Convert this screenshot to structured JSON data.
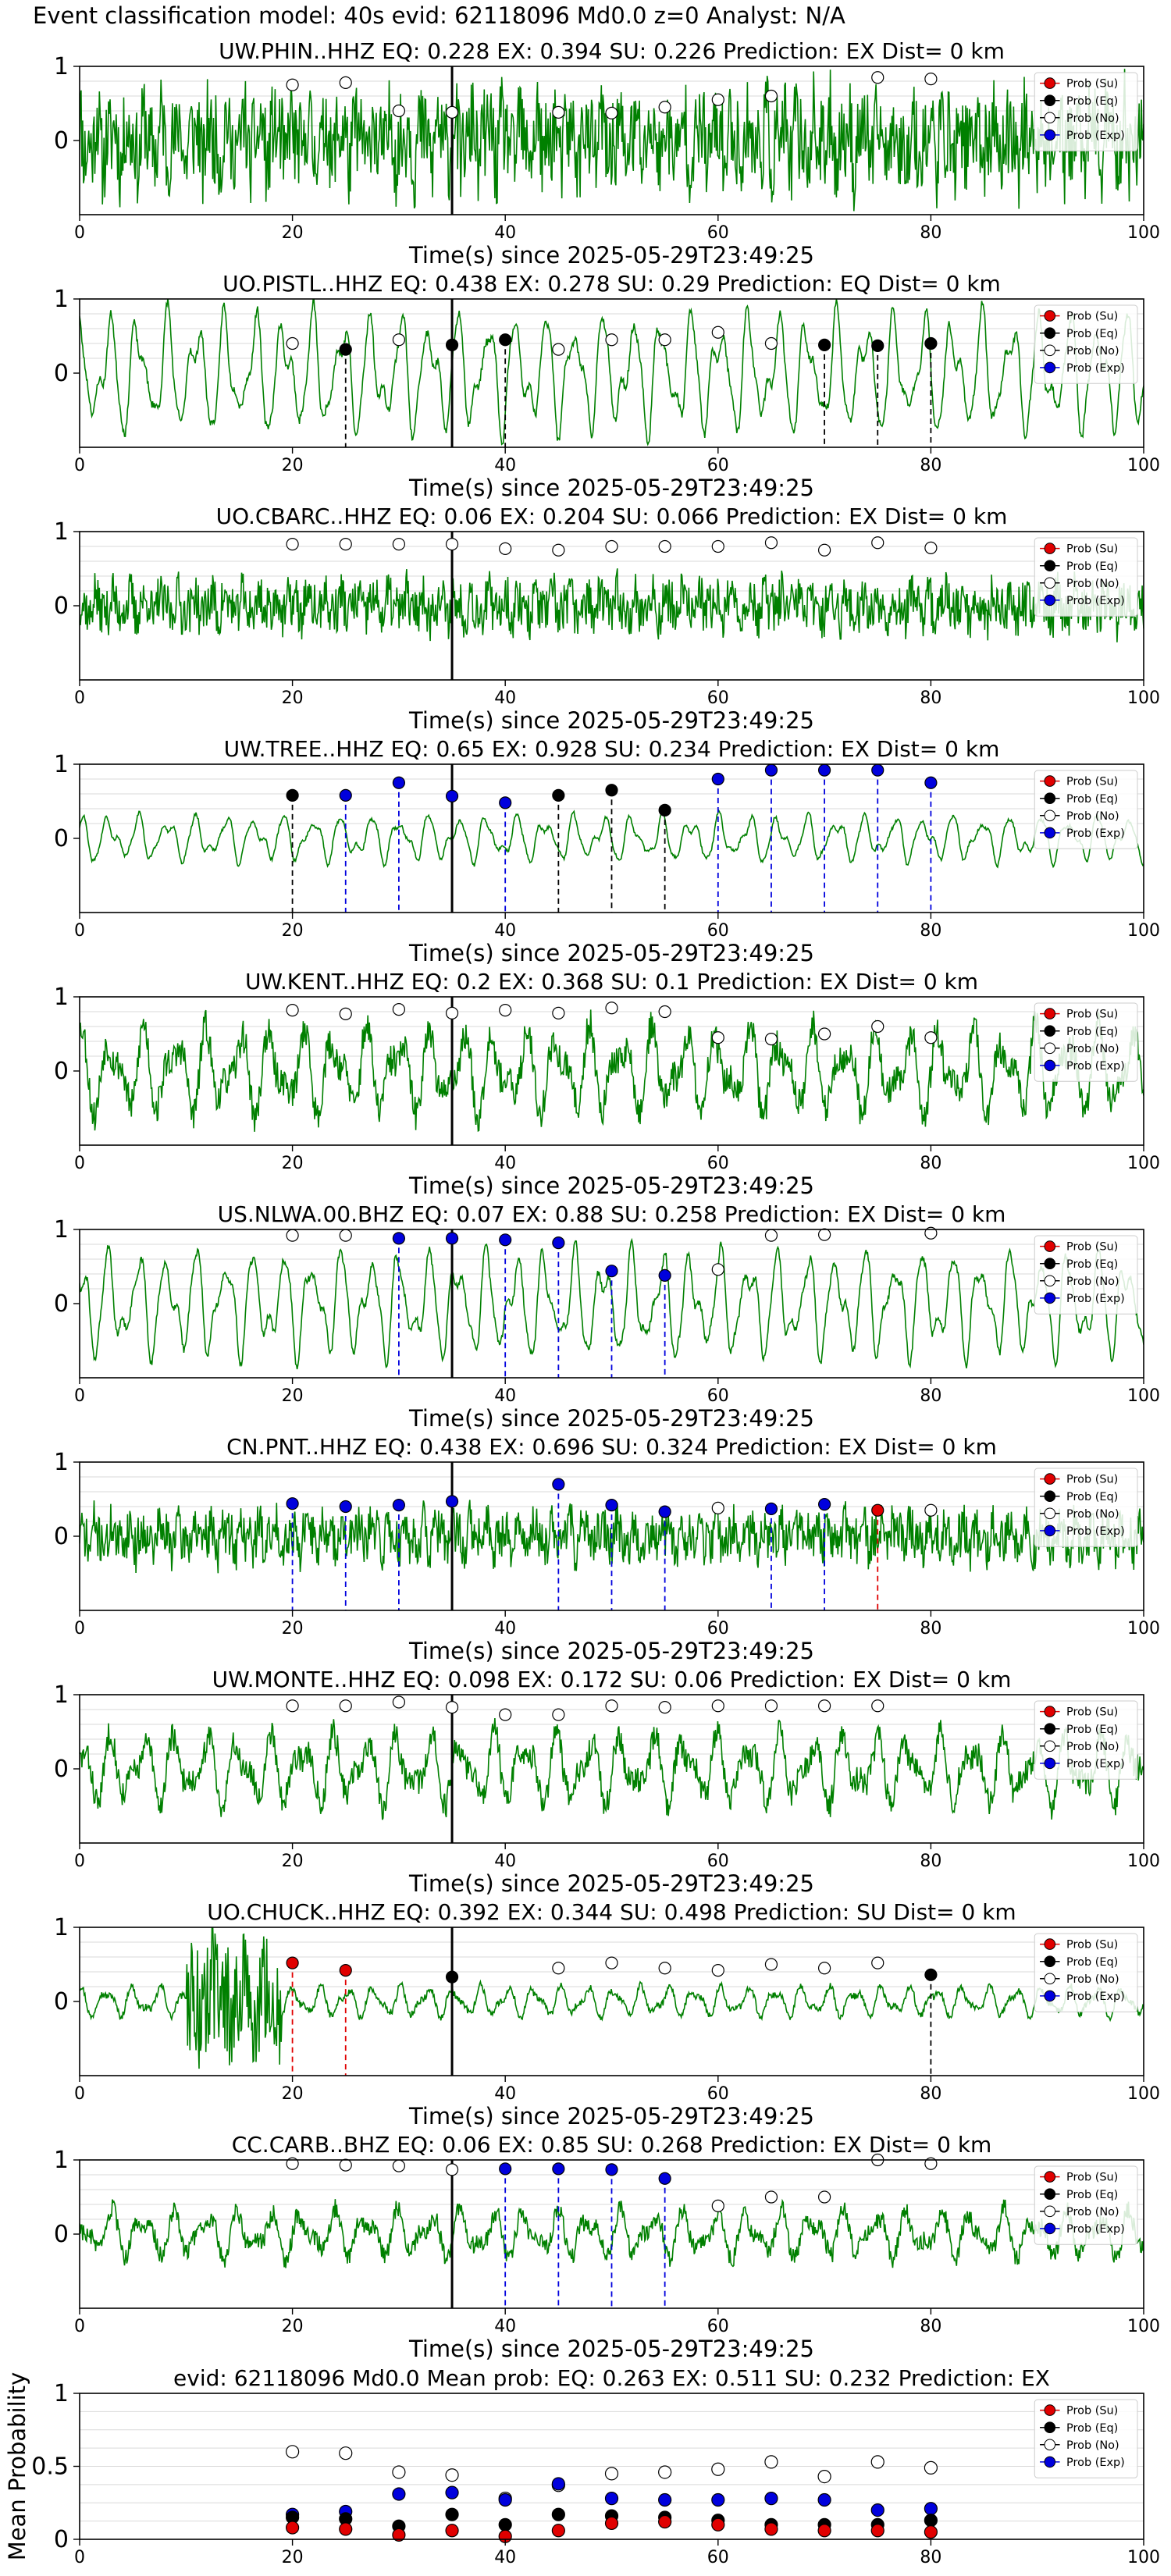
{
  "figure": {
    "suptitle": "Event classification model: 40s evid: 62118096 Md0.0 z=0 Analyst: N/A",
    "legend_labels": [
      "Prob (Su)",
      "Prob (Eq)",
      "Prob (No)",
      "Prob (Exp)"
    ],
    "colors": {
      "su": "#e00000",
      "eq": "#000000",
      "no": "#ffffff",
      "exp": "#0000dd",
      "trace": "#008000",
      "grid": "#d9d9d9"
    }
  },
  "chart_data": [
    {
      "type": "line",
      "title": "UW.PHIN..HHZ   EQ: 0.228  EX: 0.394  SU: 0.226   Prediction: EX    Dist= 0 km",
      "xlabel": "Time(s) since 2025-05-29T23:49:25",
      "ylabel": "",
      "xlim": [
        0,
        100
      ],
      "ylim": [
        -1,
        1
      ],
      "xticks": [
        0,
        20,
        40,
        60,
        80,
        100
      ],
      "yticks": [
        0,
        1
      ],
      "grid": true,
      "legend_position": "upper-right",
      "trace": {
        "style": "noisy",
        "amplitude": 0.85,
        "seed": 11
      },
      "pick_time": 35,
      "points": [
        {
          "x": 20,
          "y": 0.75,
          "cls": "no"
        },
        {
          "x": 25,
          "y": 0.78,
          "cls": "no"
        },
        {
          "x": 30,
          "y": 0.4,
          "cls": "no"
        },
        {
          "x": 35,
          "y": 0.38,
          "cls": "no"
        },
        {
          "x": 45,
          "y": 0.38,
          "cls": "no"
        },
        {
          "x": 50,
          "y": 0.37,
          "cls": "no"
        },
        {
          "x": 55,
          "y": 0.45,
          "cls": "no"
        },
        {
          "x": 60,
          "y": 0.55,
          "cls": "no"
        },
        {
          "x": 65,
          "y": 0.6,
          "cls": "no"
        },
        {
          "x": 75,
          "y": 0.85,
          "cls": "no"
        },
        {
          "x": 80,
          "y": 0.83,
          "cls": "no"
        }
      ]
    },
    {
      "type": "line",
      "title": "UO.PISTL..HHZ   EQ: 0.438  EX: 0.278  SU: 0.29   Prediction: EQ    Dist= 0 km",
      "xlabel": "Time(s) since 2025-05-29T23:49:25",
      "ylabel": "",
      "xlim": [
        0,
        100
      ],
      "ylim": [
        -1,
        1
      ],
      "xticks": [
        0,
        20,
        40,
        60,
        80,
        100
      ],
      "yticks": [
        0,
        1
      ],
      "grid": true,
      "legend_position": "upper-right",
      "trace": {
        "style": "oscillating",
        "amplitude": 0.9,
        "seed": 23
      },
      "pick_time": 35,
      "points": [
        {
          "x": 20,
          "y": 0.4,
          "cls": "no"
        },
        {
          "x": 25,
          "y": 0.32,
          "cls": "eq"
        },
        {
          "x": 30,
          "y": 0.45,
          "cls": "no"
        },
        {
          "x": 35,
          "y": 0.38,
          "cls": "eq"
        },
        {
          "x": 40,
          "y": 0.45,
          "cls": "eq"
        },
        {
          "x": 45,
          "y": 0.32,
          "cls": "no"
        },
        {
          "x": 50,
          "y": 0.45,
          "cls": "no"
        },
        {
          "x": 55,
          "y": 0.45,
          "cls": "no"
        },
        {
          "x": 60,
          "y": 0.55,
          "cls": "no"
        },
        {
          "x": 65,
          "y": 0.4,
          "cls": "no"
        },
        {
          "x": 70,
          "y": 0.38,
          "cls": "eq"
        },
        {
          "x": 75,
          "y": 0.37,
          "cls": "eq"
        },
        {
          "x": 80,
          "y": 0.4,
          "cls": "eq"
        }
      ]
    },
    {
      "type": "line",
      "title": "UO.CBARC..HHZ   EQ: 0.06  EX: 0.204  SU: 0.066   Prediction: EX    Dist= 0 km",
      "xlabel": "Time(s) since 2025-05-29T23:49:25",
      "ylabel": "",
      "xlim": [
        0,
        100
      ],
      "ylim": [
        -1,
        1
      ],
      "xticks": [
        0,
        20,
        40,
        60,
        80,
        100
      ],
      "yticks": [
        0,
        1
      ],
      "grid": true,
      "legend_position": "upper-right",
      "trace": {
        "style": "noisy",
        "amplitude": 0.45,
        "seed": 37
      },
      "pick_time": 35,
      "points": [
        {
          "x": 20,
          "y": 0.83,
          "cls": "no"
        },
        {
          "x": 25,
          "y": 0.83,
          "cls": "no"
        },
        {
          "x": 30,
          "y": 0.83,
          "cls": "no"
        },
        {
          "x": 35,
          "y": 0.83,
          "cls": "no"
        },
        {
          "x": 40,
          "y": 0.77,
          "cls": "no"
        },
        {
          "x": 45,
          "y": 0.75,
          "cls": "no"
        },
        {
          "x": 50,
          "y": 0.8,
          "cls": "no"
        },
        {
          "x": 55,
          "y": 0.8,
          "cls": "no"
        },
        {
          "x": 60,
          "y": 0.8,
          "cls": "no"
        },
        {
          "x": 65,
          "y": 0.85,
          "cls": "no"
        },
        {
          "x": 70,
          "y": 0.75,
          "cls": "no"
        },
        {
          "x": 75,
          "y": 0.85,
          "cls": "no"
        },
        {
          "x": 80,
          "y": 0.78,
          "cls": "no"
        }
      ]
    },
    {
      "type": "line",
      "title": "UW.TREE..HHZ   EQ: 0.65  EX: 0.928  SU: 0.234   Prediction: EX    Dist= 0 km",
      "xlabel": "Time(s) since 2025-05-29T23:49:25",
      "ylabel": "",
      "xlim": [
        0,
        100
      ],
      "ylim": [
        -1,
        1
      ],
      "xticks": [
        0,
        20,
        40,
        60,
        80,
        100
      ],
      "yticks": [
        0,
        1
      ],
      "grid": true,
      "legend_position": "upper-right",
      "trace": {
        "style": "oscillating",
        "amplitude": 0.35,
        "seed": 41
      },
      "pick_time": 35,
      "points": [
        {
          "x": 20,
          "y": 0.58,
          "cls": "eq"
        },
        {
          "x": 25,
          "y": 0.58,
          "cls": "exp"
        },
        {
          "x": 30,
          "y": 0.75,
          "cls": "exp"
        },
        {
          "x": 35,
          "y": 0.57,
          "cls": "exp"
        },
        {
          "x": 40,
          "y": 0.48,
          "cls": "exp"
        },
        {
          "x": 45,
          "y": 0.58,
          "cls": "eq"
        },
        {
          "x": 50,
          "y": 0.65,
          "cls": "eq"
        },
        {
          "x": 55,
          "y": 0.38,
          "cls": "eq"
        },
        {
          "x": 60,
          "y": 0.8,
          "cls": "exp"
        },
        {
          "x": 65,
          "y": 0.92,
          "cls": "exp"
        },
        {
          "x": 70,
          "y": 0.92,
          "cls": "exp"
        },
        {
          "x": 75,
          "y": 0.92,
          "cls": "exp"
        },
        {
          "x": 80,
          "y": 0.75,
          "cls": "exp"
        }
      ]
    },
    {
      "type": "line",
      "title": "UW.KENT..HHZ   EQ: 0.2  EX: 0.368  SU: 0.1   Prediction: EX    Dist= 0 km",
      "xlabel": "Time(s) since 2025-05-29T23:49:25",
      "ylabel": "",
      "xlim": [
        0,
        100
      ],
      "ylim": [
        -1,
        1
      ],
      "xticks": [
        0,
        20,
        40,
        60,
        80,
        100
      ],
      "yticks": [
        0,
        1
      ],
      "grid": true,
      "legend_position": "upper-right",
      "trace": {
        "style": "mixed",
        "amplitude": 0.8,
        "seed": 53
      },
      "pick_time": 35,
      "points": [
        {
          "x": 20,
          "y": 0.82,
          "cls": "no"
        },
        {
          "x": 25,
          "y": 0.77,
          "cls": "no"
        },
        {
          "x": 30,
          "y": 0.83,
          "cls": "no"
        },
        {
          "x": 35,
          "y": 0.78,
          "cls": "no"
        },
        {
          "x": 40,
          "y": 0.82,
          "cls": "no"
        },
        {
          "x": 45,
          "y": 0.78,
          "cls": "no"
        },
        {
          "x": 50,
          "y": 0.85,
          "cls": "no"
        },
        {
          "x": 55,
          "y": 0.8,
          "cls": "no"
        },
        {
          "x": 60,
          "y": 0.45,
          "cls": "no"
        },
        {
          "x": 65,
          "y": 0.43,
          "cls": "no"
        },
        {
          "x": 70,
          "y": 0.5,
          "cls": "no"
        },
        {
          "x": 75,
          "y": 0.6,
          "cls": "no"
        },
        {
          "x": 80,
          "y": 0.45,
          "cls": "no"
        }
      ]
    },
    {
      "type": "line",
      "title": "US.NLWA.00.BHZ   EQ: 0.07  EX: 0.88  SU: 0.258   Prediction: EX    Dist= 0 km",
      "xlabel": "Time(s) since 2025-05-29T23:49:25",
      "ylabel": "",
      "xlim": [
        0,
        100
      ],
      "ylim": [
        -1,
        1
      ],
      "xticks": [
        0,
        20,
        40,
        60,
        80,
        100
      ],
      "yticks": [
        0,
        1
      ],
      "grid": true,
      "legend_position": "upper-right",
      "trace": {
        "style": "oscillating",
        "amplitude": 0.8,
        "seed": 61
      },
      "pick_time": 35,
      "points": [
        {
          "x": 20,
          "y": 0.92,
          "cls": "no"
        },
        {
          "x": 25,
          "y": 0.92,
          "cls": "no"
        },
        {
          "x": 30,
          "y": 0.88,
          "cls": "exp"
        },
        {
          "x": 35,
          "y": 0.88,
          "cls": "exp"
        },
        {
          "x": 40,
          "y": 0.86,
          "cls": "exp"
        },
        {
          "x": 45,
          "y": 0.82,
          "cls": "exp"
        },
        {
          "x": 50,
          "y": 0.44,
          "cls": "exp"
        },
        {
          "x": 55,
          "y": 0.38,
          "cls": "exp"
        },
        {
          "x": 60,
          "y": 0.46,
          "cls": "no"
        },
        {
          "x": 65,
          "y": 0.92,
          "cls": "no"
        },
        {
          "x": 70,
          "y": 0.93,
          "cls": "no"
        },
        {
          "x": 80,
          "y": 0.95,
          "cls": "no"
        }
      ]
    },
    {
      "type": "line",
      "title": "CN.PNT..HHZ   EQ: 0.438  EX: 0.696  SU: 0.324   Prediction: EX    Dist= 0 km",
      "xlabel": "Time(s) since 2025-05-29T23:49:25",
      "ylabel": "",
      "xlim": [
        0,
        100
      ],
      "ylim": [
        -1,
        1
      ],
      "xticks": [
        0,
        20,
        40,
        60,
        80,
        100
      ],
      "yticks": [
        0,
        1
      ],
      "grid": true,
      "legend_position": "upper-right",
      "trace": {
        "style": "noisy",
        "amplitude": 0.45,
        "seed": 71
      },
      "pick_time": 35,
      "points": [
        {
          "x": 20,
          "y": 0.44,
          "cls": "exp"
        },
        {
          "x": 25,
          "y": 0.4,
          "cls": "exp"
        },
        {
          "x": 30,
          "y": 0.42,
          "cls": "exp"
        },
        {
          "x": 35,
          "y": 0.47,
          "cls": "exp"
        },
        {
          "x": 45,
          "y": 0.7,
          "cls": "exp"
        },
        {
          "x": 50,
          "y": 0.42,
          "cls": "exp"
        },
        {
          "x": 55,
          "y": 0.33,
          "cls": "exp"
        },
        {
          "x": 60,
          "y": 0.38,
          "cls": "no"
        },
        {
          "x": 65,
          "y": 0.37,
          "cls": "exp"
        },
        {
          "x": 70,
          "y": 0.43,
          "cls": "exp"
        },
        {
          "x": 75,
          "y": 0.35,
          "cls": "su"
        },
        {
          "x": 80,
          "y": 0.35,
          "cls": "no"
        }
      ]
    },
    {
      "type": "line",
      "title": "UW.MONTE..HHZ   EQ: 0.098  EX: 0.172  SU: 0.06   Prediction: EX    Dist= 0 km",
      "xlabel": "Time(s) since 2025-05-29T23:49:25",
      "ylabel": "",
      "xlim": [
        0,
        100
      ],
      "ylim": [
        -1,
        1
      ],
      "xticks": [
        0,
        20,
        40,
        60,
        80,
        100
      ],
      "yticks": [
        0,
        1
      ],
      "grid": true,
      "legend_position": "upper-right",
      "trace": {
        "style": "mixed",
        "amplitude": 0.65,
        "seed": 83
      },
      "pick_time": 35,
      "points": [
        {
          "x": 20,
          "y": 0.85,
          "cls": "no"
        },
        {
          "x": 25,
          "y": 0.85,
          "cls": "no"
        },
        {
          "x": 30,
          "y": 0.9,
          "cls": "no"
        },
        {
          "x": 35,
          "y": 0.83,
          "cls": "no"
        },
        {
          "x": 40,
          "y": 0.73,
          "cls": "no"
        },
        {
          "x": 45,
          "y": 0.73,
          "cls": "no"
        },
        {
          "x": 50,
          "y": 0.85,
          "cls": "no"
        },
        {
          "x": 55,
          "y": 0.83,
          "cls": "no"
        },
        {
          "x": 60,
          "y": 0.85,
          "cls": "no"
        },
        {
          "x": 65,
          "y": 0.85,
          "cls": "no"
        },
        {
          "x": 70,
          "y": 0.85,
          "cls": "no"
        },
        {
          "x": 75,
          "y": 0.85,
          "cls": "no"
        }
      ]
    },
    {
      "type": "line",
      "title": "UO.CHUCK..HHZ   EQ: 0.392  EX: 0.344  SU: 0.498   Prediction: SU    Dist= 0 km",
      "xlabel": "Time(s) since 2025-05-29T23:49:25",
      "ylabel": "",
      "xlim": [
        0,
        100
      ],
      "ylim": [
        -1,
        1
      ],
      "xticks": [
        0,
        20,
        40,
        60,
        80,
        100
      ],
      "yticks": [
        0,
        1
      ],
      "grid": true,
      "legend_position": "upper-right",
      "trace": {
        "style": "burst",
        "amplitude": 0.3,
        "seed": 97
      },
      "pick_time": 35,
      "points": [
        {
          "x": 20,
          "y": 0.52,
          "cls": "su"
        },
        {
          "x": 25,
          "y": 0.42,
          "cls": "su"
        },
        {
          "x": 35,
          "y": 0.33,
          "cls": "eq"
        },
        {
          "x": 45,
          "y": 0.45,
          "cls": "no"
        },
        {
          "x": 50,
          "y": 0.52,
          "cls": "no"
        },
        {
          "x": 55,
          "y": 0.45,
          "cls": "no"
        },
        {
          "x": 60,
          "y": 0.42,
          "cls": "no"
        },
        {
          "x": 65,
          "y": 0.5,
          "cls": "no"
        },
        {
          "x": 70,
          "y": 0.45,
          "cls": "no"
        },
        {
          "x": 75,
          "y": 0.52,
          "cls": "no"
        },
        {
          "x": 80,
          "y": 0.36,
          "cls": "eq"
        }
      ]
    },
    {
      "type": "line",
      "title": "CC.CARB..BHZ   EQ: 0.06  EX: 0.85  SU: 0.268   Prediction: EX    Dist= 0 km",
      "xlabel": "Time(s) since 2025-05-29T23:49:25",
      "ylabel": "",
      "xlim": [
        0,
        100
      ],
      "ylim": [
        -1,
        1
      ],
      "xticks": [
        0,
        20,
        40,
        60,
        80,
        100
      ],
      "yticks": [
        0,
        1
      ],
      "grid": true,
      "legend_position": "upper-right",
      "trace": {
        "style": "mixed",
        "amplitude": 0.45,
        "seed": 103
      },
      "pick_time": 35,
      "points": [
        {
          "x": 20,
          "y": 0.95,
          "cls": "no"
        },
        {
          "x": 25,
          "y": 0.93,
          "cls": "no"
        },
        {
          "x": 30,
          "y": 0.92,
          "cls": "no"
        },
        {
          "x": 35,
          "y": 0.87,
          "cls": "no"
        },
        {
          "x": 40,
          "y": 0.88,
          "cls": "exp"
        },
        {
          "x": 45,
          "y": 0.88,
          "cls": "exp"
        },
        {
          "x": 50,
          "y": 0.87,
          "cls": "exp"
        },
        {
          "x": 55,
          "y": 0.75,
          "cls": "exp"
        },
        {
          "x": 60,
          "y": 0.38,
          "cls": "no"
        },
        {
          "x": 65,
          "y": 0.5,
          "cls": "no"
        },
        {
          "x": 70,
          "y": 0.5,
          "cls": "no"
        },
        {
          "x": 75,
          "y": 1.0,
          "cls": "no"
        },
        {
          "x": 80,
          "y": 0.95,
          "cls": "no"
        }
      ]
    },
    {
      "type": "scatter",
      "title": "evid: 62118096  Md0.0   Mean prob:   EQ: 0.263  EX: 0.511  SU: 0.232   Prediction: EX",
      "xlabel": "",
      "ylabel": "Mean Probability",
      "xlim": [
        0,
        100
      ],
      "ylim": [
        0,
        1
      ],
      "xticks": [
        0,
        20,
        40,
        60,
        80,
        100
      ],
      "yticks": [
        0,
        0.5,
        1
      ],
      "grid": true,
      "legend_position": "upper-right",
      "x": [
        20,
        25,
        30,
        35,
        40,
        45,
        50,
        55,
        60,
        65,
        70,
        75,
        80
      ],
      "series": [
        {
          "name": "Prob (No)",
          "cls": "no",
          "values": [
            0.6,
            0.59,
            0.46,
            0.44,
            0.28,
            0.37,
            0.45,
            0.46,
            0.48,
            0.53,
            0.43,
            0.53,
            0.49
          ]
        },
        {
          "name": "Prob (Exp)",
          "cls": "exp",
          "values": [
            0.17,
            0.19,
            0.31,
            0.32,
            0.27,
            0.38,
            0.28,
            0.27,
            0.27,
            0.28,
            0.27,
            0.2,
            0.21
          ]
        },
        {
          "name": "Prob (Eq)",
          "cls": "eq",
          "values": [
            0.15,
            0.14,
            0.09,
            0.17,
            0.1,
            0.17,
            0.16,
            0.15,
            0.13,
            0.1,
            0.1,
            0.1,
            0.13
          ]
        },
        {
          "name": "Prob (Su)",
          "cls": "su",
          "values": [
            0.08,
            0.07,
            0.03,
            0.06,
            0.02,
            0.06,
            0.11,
            0.12,
            0.1,
            0.07,
            0.06,
            0.06,
            0.05
          ]
        }
      ]
    }
  ]
}
